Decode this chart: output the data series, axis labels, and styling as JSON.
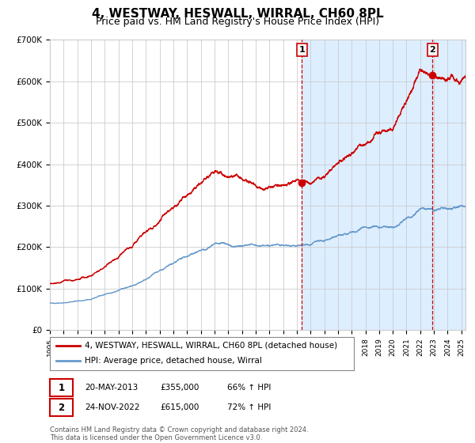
{
  "title": "4, WESTWAY, HESWALL, WIRRAL, CH60 8PL",
  "subtitle": "Price paid vs. HM Land Registry's House Price Index (HPI)",
  "legend_line1": "4, WESTWAY, HESWALL, WIRRAL, CH60 8PL (detached house)",
  "legend_line2": "HPI: Average price, detached house, Wirral",
  "annotation1_label": "1",
  "annotation1_date": "20-MAY-2013",
  "annotation1_price": "£355,000",
  "annotation1_hpi": "66% ↑ HPI",
  "annotation1_year": 2013.38,
  "annotation1_value": 355000,
  "annotation2_label": "2",
  "annotation2_date": "24-NOV-2022",
  "annotation2_price": "£615,000",
  "annotation2_hpi": "72% ↑ HPI",
  "annotation2_year": 2022.9,
  "annotation2_value": 615000,
  "red_color": "#cc0000",
  "blue_color": "#6699cc",
  "shading_color": "#ddeeff",
  "background_color": "#ffffff",
  "grid_color": "#cccccc",
  "title_fontsize": 11,
  "subtitle_fontsize": 9,
  "ylim": [
    0,
    700000
  ],
  "xlim_start": 1995.0,
  "xlim_end": 2025.3,
  "footer_line1": "Contains HM Land Registry data © Crown copyright and database right 2024.",
  "footer_line2": "This data is licensed under the Open Government Licence v3.0."
}
